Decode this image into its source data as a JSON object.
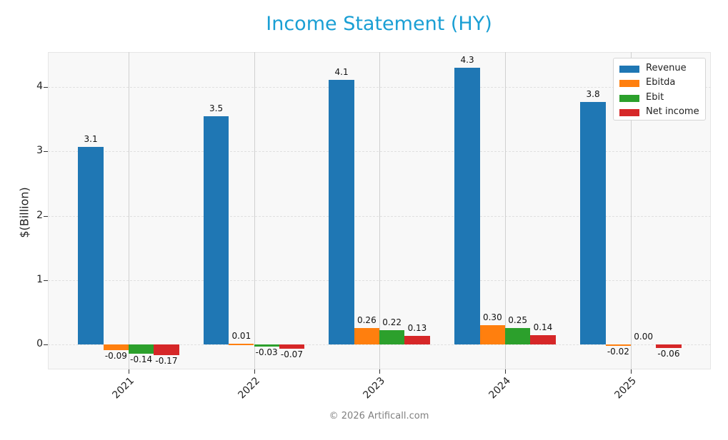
{
  "title": "Income Statement (HY)",
  "footer": "© 2026 Artificall.com",
  "colors": {
    "title": "#1a9fd4",
    "Revenue": "#1f77b4",
    "Ebitda": "#ff7f0e",
    "Ebit": "#2ca02c",
    "Net income": "#d62728"
  },
  "legend": [
    {
      "label": "Revenue",
      "color": "#1f77b4"
    },
    {
      "label": "Ebitda",
      "color": "#ff7f0e"
    },
    {
      "label": "Ebit",
      "color": "#2ca02c"
    },
    {
      "label": "Net income",
      "color": "#d62728"
    }
  ],
  "chart_data": {
    "type": "bar",
    "title": "Income Statement (HY)",
    "xlabel": "",
    "ylabel": "$(Billion)",
    "categories": [
      "2021",
      "2022",
      "2023",
      "2024",
      "2025"
    ],
    "series": [
      {
        "name": "Revenue",
        "color": "#1f77b4",
        "values": [
          3.07,
          3.55,
          4.11,
          4.3,
          3.77
        ],
        "labels": [
          "3.1",
          "3.5",
          "4.1",
          "4.3",
          "3.8"
        ]
      },
      {
        "name": "Ebitda",
        "color": "#ff7f0e",
        "values": [
          -0.09,
          0.01,
          0.26,
          0.3,
          -0.02
        ],
        "labels": [
          "-0.09",
          "0.01",
          "0.26",
          "0.30",
          "-0.02"
        ]
      },
      {
        "name": "Ebit",
        "color": "#2ca02c",
        "values": [
          -0.14,
          -0.03,
          0.22,
          0.25,
          0.0
        ],
        "labels": [
          "-0.14",
          "-0.03",
          "0.22",
          "0.25",
          "0.00"
        ]
      },
      {
        "name": "Net income",
        "color": "#d62728",
        "values": [
          -0.17,
          -0.07,
          0.13,
          0.14,
          -0.06
        ],
        "labels": [
          "-0.17",
          "-0.07",
          "0.13",
          "0.14",
          "-0.06"
        ]
      }
    ],
    "yticks": [
      0,
      1,
      2,
      3,
      4
    ],
    "ylim": [
      -0.39,
      4.55
    ],
    "grid": true,
    "legend_position": "upper right"
  }
}
